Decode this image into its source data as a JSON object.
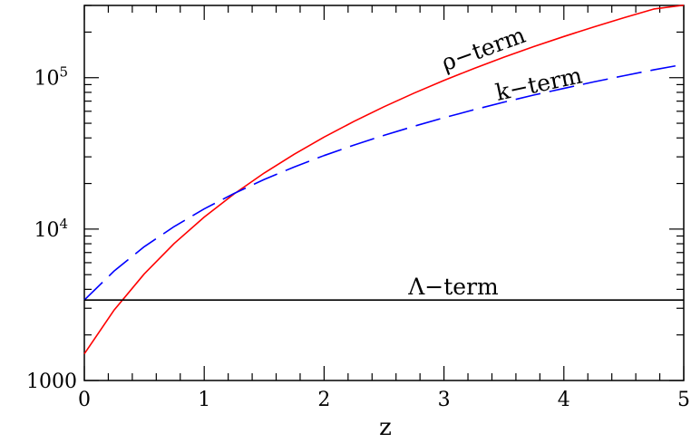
{
  "chart_data": {
    "type": "line",
    "title": "",
    "xlabel": "z",
    "ylabel": "",
    "xlim": [
      0,
      5
    ],
    "ylim": [
      1000,
      300000
    ],
    "yscale": "log",
    "grid": false,
    "x_ticks": [
      {
        "value": 0,
        "label": "0"
      },
      {
        "value": 1,
        "label": "1"
      },
      {
        "value": 2,
        "label": "2"
      },
      {
        "value": 3,
        "label": "3"
      },
      {
        "value": 4,
        "label": "4"
      },
      {
        "value": 5,
        "label": "5"
      }
    ],
    "y_ticks": [
      {
        "value": 1000,
        "base": "1000",
        "exp": ""
      },
      {
        "value": 10000,
        "base": "10",
        "exp": "4"
      },
      {
        "value": 100000,
        "base": "10",
        "exp": "5"
      }
    ],
    "series": [
      {
        "name": "ρ−term",
        "color": "#ff0000",
        "style": "solid",
        "x": [
          0,
          0.25,
          0.5,
          0.75,
          1,
          1.25,
          1.5,
          1.75,
          2,
          2.25,
          2.5,
          2.75,
          3,
          3.25,
          3.5,
          3.75,
          4,
          4.25,
          4.5,
          4.75,
          5
        ],
        "y": [
          1500,
          2930,
          5060,
          8040,
          12000,
          17090,
          23450,
          31210,
          40500,
          51480,
          64290,
          79050,
          95900,
          114990,
          136460,
          160430,
          187000,
          216420,
          248740,
          284080,
          301000
        ]
      },
      {
        "name": "k−term",
        "color": "#0000ff",
        "style": "dashed",
        "x": [
          0,
          0.25,
          0.5,
          0.75,
          1,
          1.25,
          1.5,
          1.75,
          2,
          2.25,
          2.5,
          2.75,
          3,
          3.25,
          3.5,
          3.75,
          4,
          4.25,
          4.5,
          4.75,
          5
        ],
        "y": [
          3400,
          5300,
          7650,
          10400,
          13600,
          17200,
          21250,
          25700,
          30600,
          35900,
          41600,
          47750,
          54400,
          61400,
          68900,
          76800,
          85000,
          93800,
          103000,
          112700,
          122400
        ]
      },
      {
        "name": "Λ−term",
        "color": "#000000",
        "style": "solid",
        "x": [
          0,
          5
        ],
        "y": [
          3400,
          3400
        ]
      }
    ],
    "annotations": [
      {
        "text": "ρ−term",
        "series": 0
      },
      {
        "text": "k−term",
        "series": 1
      },
      {
        "text": "Λ−term",
        "series": 2
      }
    ]
  }
}
